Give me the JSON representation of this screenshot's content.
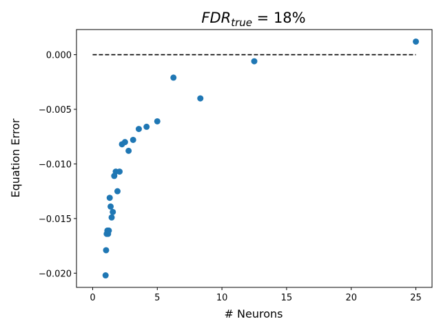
{
  "chart_data": {
    "type": "scatter",
    "title": {
      "base": "FDR",
      "subscript": "true",
      "suffix": " = 18%"
    },
    "xlabel": "# Neurons",
    "ylabel": "Equation Error",
    "xlim": [
      -1.25,
      26.25
    ],
    "ylim": [
      -0.0213,
      0.0023
    ],
    "xticks": [
      0,
      5,
      10,
      15,
      20,
      25
    ],
    "xtick_labels": [
      "0",
      "5",
      "10",
      "15",
      "20",
      "25"
    ],
    "yticks": [
      -0.02,
      -0.015,
      -0.01,
      -0.005,
      0.0
    ],
    "ytick_labels": [
      "−0.020",
      "−0.015",
      "−0.010",
      "−0.005",
      "0.000"
    ],
    "grid": false,
    "marker_color": "#1f77b4",
    "reference_line": {
      "y": 0.0,
      "x_start": 0,
      "x_end": 25,
      "style": "dashed",
      "color": "#000000"
    },
    "points": [
      {
        "x": 1.0,
        "y": -0.0202
      },
      {
        "x": 1.04,
        "y": -0.0179
      },
      {
        "x": 1.09,
        "y": -0.0164
      },
      {
        "x": 1.14,
        "y": -0.0161
      },
      {
        "x": 1.19,
        "y": -0.0164
      },
      {
        "x": 1.25,
        "y": -0.0161
      },
      {
        "x": 1.32,
        "y": -0.0131
      },
      {
        "x": 1.39,
        "y": -0.0139
      },
      {
        "x": 1.47,
        "y": -0.0149
      },
      {
        "x": 1.56,
        "y": -0.0144
      },
      {
        "x": 1.67,
        "y": -0.0111
      },
      {
        "x": 1.79,
        "y": -0.0107
      },
      {
        "x": 1.92,
        "y": -0.0125
      },
      {
        "x": 2.08,
        "y": -0.0107
      },
      {
        "x": 2.27,
        "y": -0.0082
      },
      {
        "x": 2.5,
        "y": -0.008
      },
      {
        "x": 2.78,
        "y": -0.0088
      },
      {
        "x": 3.13,
        "y": -0.0078
      },
      {
        "x": 3.57,
        "y": -0.0068
      },
      {
        "x": 4.17,
        "y": -0.0066
      },
      {
        "x": 5.0,
        "y": -0.0061
      },
      {
        "x": 6.25,
        "y": -0.0021
      },
      {
        "x": 8.33,
        "y": -0.004
      },
      {
        "x": 12.5,
        "y": -0.0006
      },
      {
        "x": 25.0,
        "y": 0.0012
      }
    ]
  }
}
